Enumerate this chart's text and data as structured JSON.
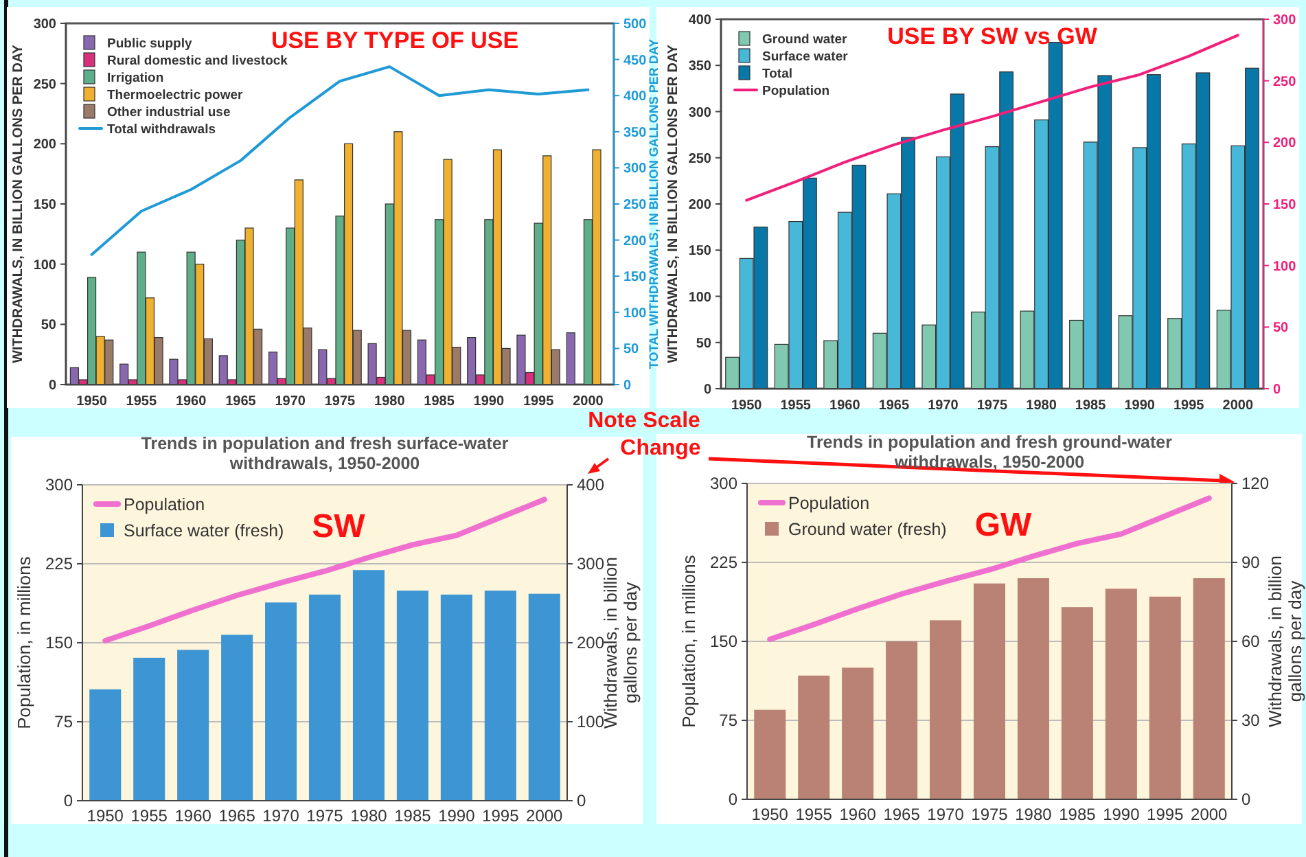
{
  "chart_data": [
    {
      "type": "bar",
      "title": "USE BY TYPE OF USE",
      "ylabel": "WITHDRAWALS, IN BILLION GALLONS PER DAY",
      "y2label": "TOTAL WITHDRAWALS, IN BILLION GALLONS PER DAY",
      "categories": [
        "1950",
        "1955",
        "1960",
        "1965",
        "1970",
        "1975",
        "1980",
        "1985",
        "1990",
        "1995",
        "2000"
      ],
      "ylim": [
        0,
        300
      ],
      "yticks": [
        0,
        50,
        100,
        150,
        200,
        250,
        300
      ],
      "y2lim": [
        0,
        500
      ],
      "y2ticks": [
        0,
        50,
        100,
        150,
        200,
        250,
        300,
        350,
        400,
        450,
        500
      ],
      "legend": "top left",
      "series": [
        {
          "name": "Public supply",
          "color": "#8a68b0",
          "values": [
            14,
            17,
            21,
            24,
            27,
            29,
            34,
            37,
            39,
            41,
            43
          ]
        },
        {
          "name": "Rural domestic and livestock",
          "color": "#d8307a",
          "values": [
            4,
            4,
            4,
            4,
            5,
            5,
            6,
            8,
            8,
            10,
            null
          ]
        },
        {
          "name": "Irrigation",
          "color": "#5fae8a",
          "values": [
            89,
            110,
            110,
            120,
            130,
            140,
            150,
            137,
            137,
            134,
            137
          ]
        },
        {
          "name": "Thermoelectric power",
          "color": "#f0b030",
          "values": [
            40,
            72,
            100,
            130,
            170,
            200,
            210,
            187,
            195,
            190,
            195
          ]
        },
        {
          "name": "Other industrial use",
          "color": "#9a7a68",
          "values": [
            37,
            39,
            38,
            46,
            47,
            45,
            45,
            31,
            30,
            29,
            null
          ]
        },
        {
          "name": "Total withdrawals",
          "type": "line",
          "axis": "y2",
          "color": "#1e9ad6",
          "values": [
            180,
            240,
            270,
            310,
            370,
            420,
            440,
            400,
            408,
            402,
            408
          ]
        }
      ]
    },
    {
      "type": "bar",
      "title": "USE BY SW vs GW",
      "ylabel": "WITHDRAWALS, IN BILLION GALLONS PER DAY",
      "categories": [
        "1950",
        "1955",
        "1960",
        "1965",
        "1970",
        "1975",
        "1980",
        "1985",
        "1990",
        "1995",
        "2000"
      ],
      "ylim": [
        0,
        400
      ],
      "yticks": [
        0,
        50,
        100,
        150,
        200,
        250,
        300,
        350,
        400
      ],
      "y2lim": [
        0,
        300
      ],
      "y2ticks": [
        0,
        50,
        100,
        150,
        200,
        250,
        300
      ],
      "legend": "top left",
      "series": [
        {
          "name": "Ground water",
          "color": "#80c8b0",
          "values": [
            34,
            48,
            52,
            60,
            69,
            83,
            84,
            74,
            79,
            76,
            85
          ]
        },
        {
          "name": "Surface water",
          "color": "#48b8d8",
          "values": [
            141,
            181,
            191,
            211,
            251,
            262,
            291,
            267,
            261,
            265,
            263
          ]
        },
        {
          "name": "Total",
          "color": "#0878a8",
          "values": [
            175,
            228,
            242,
            272,
            319,
            343,
            375,
            339,
            340,
            342,
            347
          ]
        },
        {
          "name": "Population",
          "type": "line",
          "axis": "y2",
          "color": "#f0207a",
          "values": [
            153,
            168,
            184,
            198,
            210,
            221,
            233,
            245,
            255,
            270,
            287
          ]
        }
      ]
    },
    {
      "type": "bar",
      "title": "Trends in population and fresh surface-water withdrawals, 1950-2000",
      "ylabel": "Population, in millions",
      "y2label": "Withdrawals, in billion gallons per day",
      "annotations": [
        "SW",
        "Note Scale Change"
      ],
      "categories": [
        "1950",
        "1955",
        "1960",
        "1965",
        "1970",
        "1975",
        "1980",
        "1985",
        "1990",
        "1995",
        "2000"
      ],
      "ylim": [
        0,
        300
      ],
      "yticks": [
        0,
        75,
        150,
        225,
        300
      ],
      "y2lim": [
        0,
        400
      ],
      "y2ticks": [
        0,
        100,
        200,
        300,
        400
      ],
      "grid": "y",
      "legend": "top left",
      "series": [
        {
          "name": "Population",
          "type": "line",
          "color": "#f070d0",
          "values": [
            152,
            166,
            181,
            195,
            207,
            218,
            231,
            243,
            252,
            269,
            286
          ]
        },
        {
          "name": "Surface water (fresh)",
          "axis": "y2",
          "color": "#3d95d3",
          "values": [
            141,
            181,
            191,
            210,
            251,
            261,
            292,
            266,
            261,
            266,
            262
          ]
        }
      ]
    },
    {
      "type": "bar",
      "title": "Trends in population and fresh ground-water withdrawals, 1950-2000",
      "ylabel": "Population, in millions",
      "y2label": "Withdrawals, in billion gallons per day",
      "annotations": [
        "GW"
      ],
      "categories": [
        "1950",
        "1955",
        "1960",
        "1965",
        "1970",
        "1975",
        "1980",
        "1985",
        "1990",
        "1995",
        "2000"
      ],
      "ylim": [
        0,
        300
      ],
      "yticks": [
        0,
        75,
        150,
        225,
        300
      ],
      "y2lim": [
        0,
        120
      ],
      "y2ticks": [
        0,
        30,
        60,
        90,
        120
      ],
      "grid": "y",
      "legend": "top left",
      "series": [
        {
          "name": "Population",
          "type": "line",
          "color": "#f070d0",
          "values": [
            152,
            166,
            181,
            195,
            207,
            218,
            231,
            243,
            252,
            269,
            286
          ]
        },
        {
          "name": "Ground water (fresh)",
          "axis": "y2",
          "color": "#b98274",
          "values": [
            34,
            47,
            50,
            60,
            68,
            82,
            84,
            73,
            80,
            77,
            84
          ]
        }
      ]
    }
  ]
}
